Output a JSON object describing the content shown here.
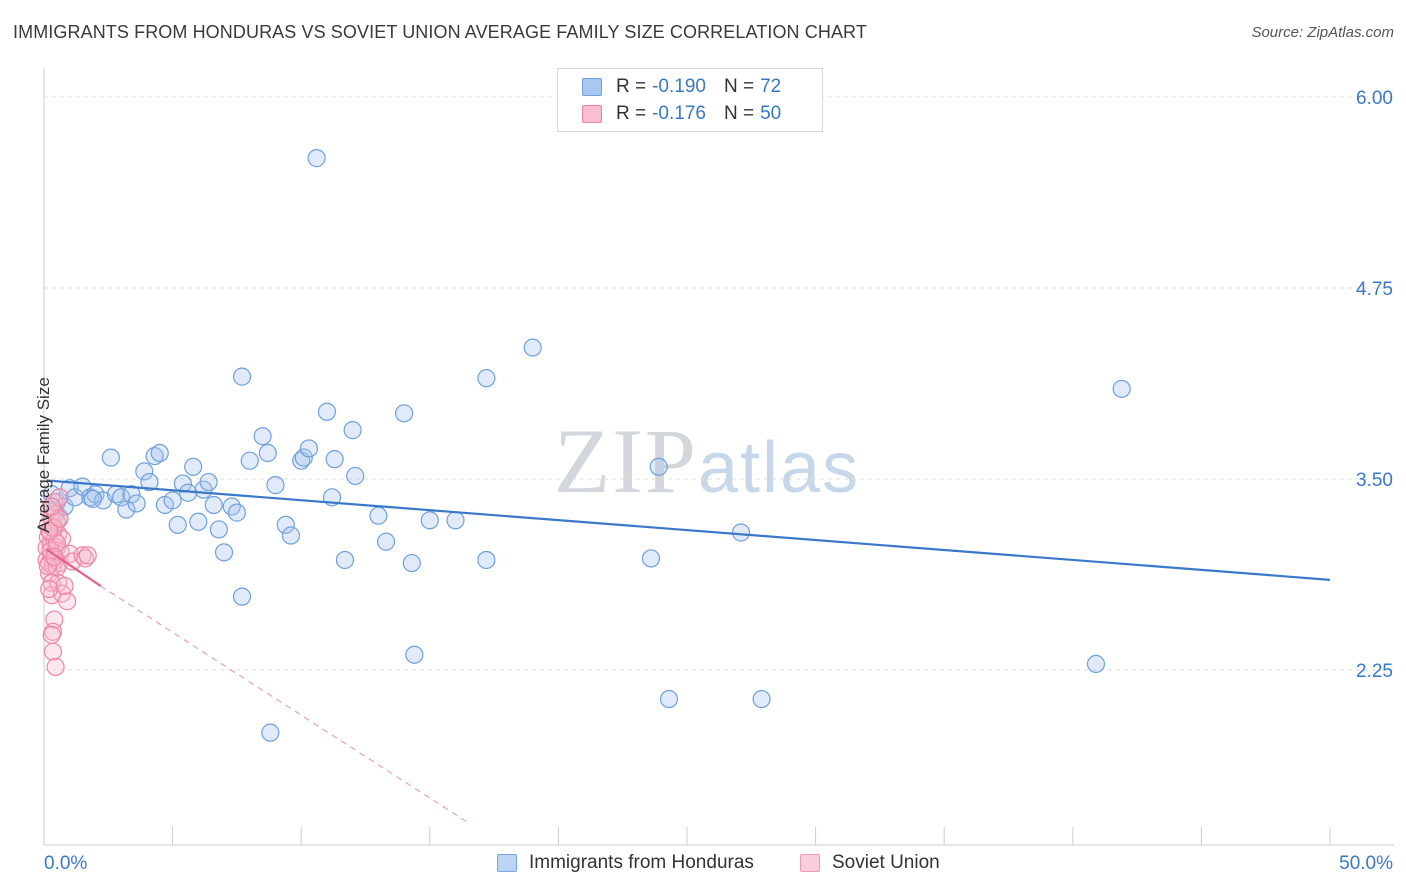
{
  "title": "IMMIGRANTS FROM HONDURAS VS SOVIET UNION AVERAGE FAMILY SIZE CORRELATION CHART",
  "source": "Source: ZipAtlas.com",
  "watermark": {
    "zip": "ZIP",
    "atlas": "atlas"
  },
  "legend": {
    "r_label": "R =",
    "n_label": "N =",
    "rows": [
      {
        "r": "-0.190",
        "n": "72",
        "color": "#a9c8f0",
        "border": "#6c9fdc"
      },
      {
        "r": "-0.176",
        "n": "50",
        "color": "#f7bfd0",
        "border": "#e9819f"
      }
    ]
  },
  "bottom_legend": [
    {
      "label": "Immigrants from Honduras",
      "color": "#bcd4f3",
      "border": "#7aa7e0"
    },
    {
      "label": "Soviet Union",
      "color": "#f9cdda",
      "border": "#ee9ab2"
    }
  ],
  "chart_data": {
    "type": "scatter",
    "title": "IMMIGRANTS FROM HONDURAS VS SOVIET UNION AVERAGE FAMILY SIZE CORRELATION CHART",
    "xlabel": "",
    "ylabel": "Average Family Size",
    "xlim": [
      0,
      50
    ],
    "ylim": [
      1.25,
      6.25
    ],
    "x_ticks": [
      "0.0%",
      "50.0%"
    ],
    "y_ticks": [
      "2.25",
      "3.50",
      "4.75",
      "6.00"
    ],
    "y_tick_values": [
      2.25,
      3.5,
      4.75,
      6.0
    ],
    "grid": true,
    "legend_position": "top-center",
    "series": [
      {
        "name": "Immigrants from Honduras",
        "color": "#6fa0dd",
        "fill": "rgba(165,196,238,0.35)",
        "trend": {
          "x": [
            0.1,
            50
          ],
          "y": [
            3.49,
            2.84
          ],
          "color": "#3a78c8",
          "dashed_ext": false
        },
        "points": [
          [
            0.3,
            3.4
          ],
          [
            0.5,
            3.35
          ],
          [
            0.6,
            3.25
          ],
          [
            0.8,
            3.32
          ],
          [
            1.0,
            3.44
          ],
          [
            1.2,
            3.38
          ],
          [
            1.5,
            3.45
          ],
          [
            1.8,
            3.38
          ],
          [
            2.0,
            3.4
          ],
          [
            2.3,
            3.36
          ],
          [
            2.6,
            3.64
          ],
          [
            2.8,
            3.4
          ],
          [
            3.0,
            3.38
          ],
          [
            3.2,
            3.3
          ],
          [
            3.4,
            3.4
          ],
          [
            3.6,
            3.34
          ],
          [
            3.9,
            3.55
          ],
          [
            4.1,
            3.48
          ],
          [
            4.3,
            3.65
          ],
          [
            4.5,
            3.67
          ],
          [
            4.7,
            3.33
          ],
          [
            5.0,
            3.36
          ],
          [
            5.2,
            3.2
          ],
          [
            5.4,
            3.47
          ],
          [
            5.6,
            3.41
          ],
          [
            5.8,
            3.58
          ],
          [
            6.0,
            3.22
          ],
          [
            6.2,
            3.43
          ],
          [
            6.4,
            3.48
          ],
          [
            6.6,
            3.33
          ],
          [
            6.8,
            3.17
          ],
          [
            7.0,
            3.02
          ],
          [
            7.3,
            3.32
          ],
          [
            7.5,
            3.28
          ],
          [
            7.7,
            2.73
          ],
          [
            7.7,
            4.17
          ],
          [
            8.0,
            3.62
          ],
          [
            8.5,
            3.78
          ],
          [
            8.7,
            3.67
          ],
          [
            8.8,
            1.84
          ],
          [
            9.0,
            3.46
          ],
          [
            9.4,
            3.2
          ],
          [
            9.6,
            3.13
          ],
          [
            10.0,
            3.62
          ],
          [
            10.1,
            3.64
          ],
          [
            10.3,
            3.7
          ],
          [
            10.6,
            5.6
          ],
          [
            11.0,
            3.94
          ],
          [
            11.2,
            3.38
          ],
          [
            11.3,
            3.63
          ],
          [
            11.7,
            2.97
          ],
          [
            12.0,
            3.82
          ],
          [
            12.1,
            3.52
          ],
          [
            13.0,
            3.26
          ],
          [
            13.3,
            3.09
          ],
          [
            14.0,
            3.93
          ],
          [
            14.3,
            2.95
          ],
          [
            14.4,
            2.35
          ],
          [
            15.0,
            3.23
          ],
          [
            16.0,
            3.23
          ],
          [
            17.2,
            2.97
          ],
          [
            17.2,
            4.16
          ],
          [
            19.0,
            4.36
          ],
          [
            23.6,
            2.98
          ],
          [
            23.9,
            3.58
          ],
          [
            24.3,
            2.06
          ],
          [
            27.1,
            3.15
          ],
          [
            27.9,
            2.06
          ],
          [
            40.9,
            2.29
          ],
          [
            41.9,
            4.09
          ],
          [
            0.4,
            3.29
          ],
          [
            1.9,
            3.37
          ]
        ]
      },
      {
        "name": "Soviet Union",
        "color": "#ee86a5",
        "fill": "rgba(247,189,207,0.35)",
        "trend": {
          "x": [
            0.1,
            2.2
          ],
          "y": [
            3.04,
            2.8
          ],
          "color": "#e5608a",
          "dashed_ext": true,
          "ext_to": [
            16.5,
            1.25
          ]
        },
        "points": [
          [
            0.1,
            3.05
          ],
          [
            0.1,
            2.97
          ],
          [
            0.15,
            3.2
          ],
          [
            0.15,
            3.12
          ],
          [
            0.2,
            3.3
          ],
          [
            0.2,
            2.95
          ],
          [
            0.2,
            2.88
          ],
          [
            0.25,
            3.08
          ],
          [
            0.25,
            3.15
          ],
          [
            0.3,
            3.0
          ],
          [
            0.3,
            3.25
          ],
          [
            0.3,
            2.82
          ],
          [
            0.35,
            3.18
          ],
          [
            0.35,
            2.93
          ],
          [
            0.4,
            3.35
          ],
          [
            0.4,
            3.1
          ],
          [
            0.45,
            2.97
          ],
          [
            0.45,
            3.27
          ],
          [
            0.5,
            3.05
          ],
          [
            0.5,
            3.22
          ],
          [
            0.55,
            3.14
          ],
          [
            0.6,
            2.95
          ],
          [
            0.6,
            3.38
          ],
          [
            0.65,
            3.02
          ],
          [
            0.7,
            3.11
          ],
          [
            0.3,
            2.74
          ],
          [
            0.4,
            2.58
          ],
          [
            0.35,
            2.5
          ],
          [
            0.3,
            2.48
          ],
          [
            0.35,
            2.37
          ],
          [
            0.45,
            2.27
          ],
          [
            0.55,
            2.82
          ],
          [
            0.7,
            2.75
          ],
          [
            0.9,
            2.7
          ],
          [
            0.8,
            2.8
          ],
          [
            1.0,
            3.01
          ],
          [
            1.1,
            2.96
          ],
          [
            1.5,
            3.0
          ],
          [
            1.6,
            2.98
          ],
          [
            1.7,
            3.0
          ],
          [
            0.2,
            2.78
          ],
          [
            0.25,
            3.03
          ],
          [
            0.4,
            3.18
          ],
          [
            0.5,
            2.92
          ],
          [
            0.6,
            3.24
          ],
          [
            0.15,
            2.93
          ],
          [
            0.3,
            3.32
          ],
          [
            0.5,
            3.08
          ],
          [
            0.2,
            3.16
          ],
          [
            0.4,
            2.99
          ]
        ]
      }
    ]
  }
}
